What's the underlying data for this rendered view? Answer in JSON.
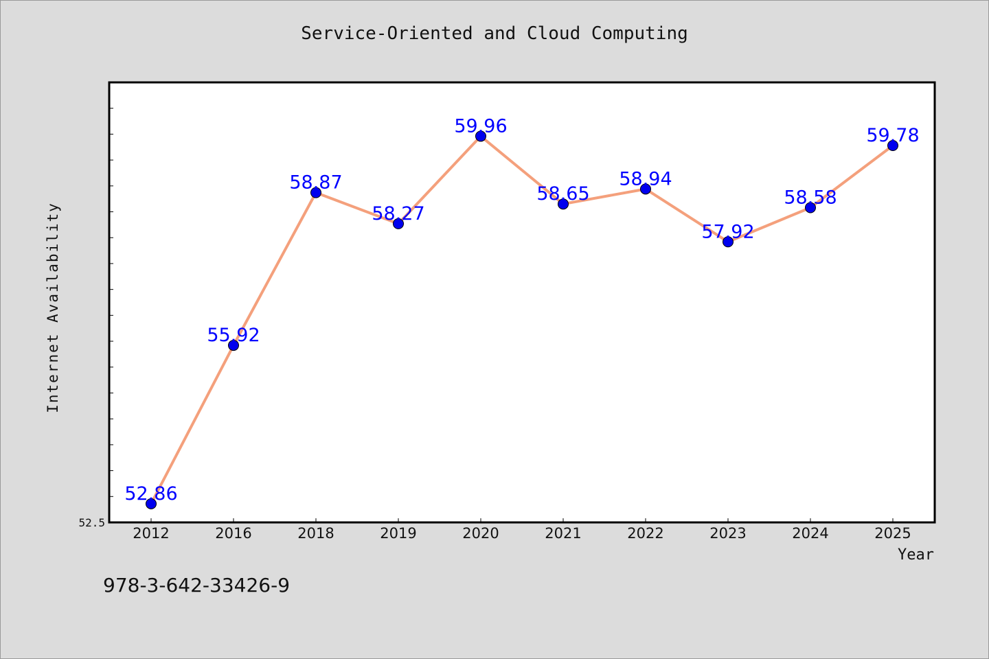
{
  "chart_data": {
    "type": "line",
    "title": "Service-Oriented and Cloud Computing",
    "xlabel": "Year",
    "ylabel": "Internet Availability",
    "categories": [
      "2012",
      "2016",
      "2018",
      "2019",
      "2020",
      "2021",
      "2022",
      "2023",
      "2024",
      "2025"
    ],
    "series": [
      {
        "values": [
          52.86,
          55.92,
          58.87,
          58.27,
          59.96,
          58.65,
          58.94,
          57.92,
          58.58,
          59.78
        ],
        "labels": [
          "52.86",
          "55.92",
          "58.87",
          "58.27",
          "59.96",
          "58.65",
          "58.94",
          "57.92",
          "58.58",
          "59.78"
        ]
      }
    ],
    "ylim": [
      52.5,
      61.0
    ],
    "y_tick_labels": [
      "52.5"
    ],
    "grid": false,
    "colors": {
      "line": "#f4a07c",
      "marker": "#0000ee",
      "data_label": "#0000ff",
      "background": "#dcdcdc",
      "plot_background": "#ffffff"
    }
  },
  "footer": {
    "isbn": "978-3-642-33426-9"
  }
}
